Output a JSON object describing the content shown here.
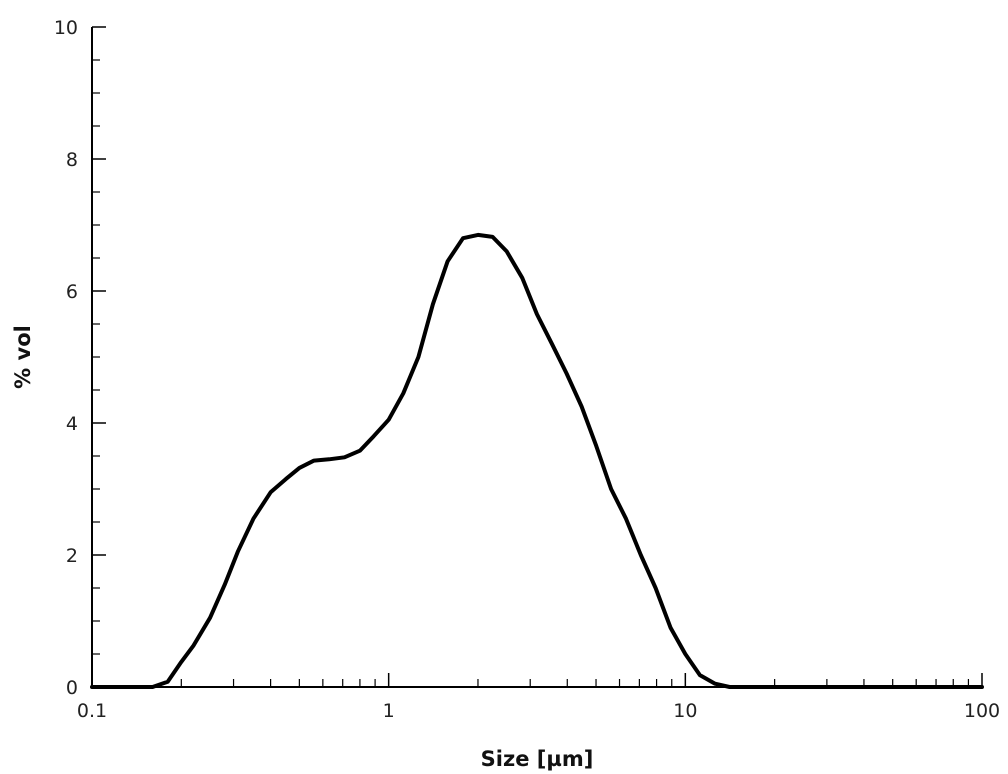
{
  "chart_data": {
    "type": "line",
    "title": "",
    "xlabel": "Size [µm]",
    "ylabel": "% vol",
    "xscale": "log",
    "xlim": [
      0.1,
      100
    ],
    "ylim": [
      0,
      10
    ],
    "grid": false,
    "x_tick_labels": [
      "0.1",
      "1",
      "10",
      "100"
    ],
    "x_tick_values": [
      0.1,
      1,
      10,
      100
    ],
    "y_tick_labels": [
      "0",
      "2",
      "4",
      "6",
      "8",
      "10"
    ],
    "y_tick_values": [
      0,
      2,
      4,
      6,
      8,
      10
    ],
    "colors": {
      "line": "#000000",
      "axis": "#000000"
    },
    "series": [
      {
        "x": [
          0.1,
          0.12,
          0.14,
          0.16,
          0.18,
          0.2,
          0.22,
          0.25,
          0.28,
          0.31,
          0.35,
          0.4,
          0.45,
          0.5,
          0.56,
          0.63,
          0.71,
          0.8,
          0.89,
          1.0,
          1.12,
          1.26,
          1.41,
          1.58,
          1.78,
          2.0,
          2.24,
          2.5,
          2.82,
          3.16,
          3.55,
          3.98,
          4.47,
          5.01,
          5.62,
          6.31,
          7.08,
          7.94,
          8.91,
          10.0,
          11.2,
          12.6,
          14.1,
          15.8,
          20,
          30,
          50,
          100
        ],
        "y": [
          0,
          0,
          0,
          0,
          0.08,
          0.38,
          0.63,
          1.05,
          1.55,
          2.05,
          2.55,
          2.95,
          3.15,
          3.32,
          3.43,
          3.45,
          3.48,
          3.58,
          3.8,
          4.05,
          4.45,
          5.0,
          5.8,
          6.45,
          6.8,
          6.85,
          6.82,
          6.6,
          6.2,
          5.65,
          5.2,
          4.75,
          4.25,
          3.65,
          3.0,
          2.55,
          2.0,
          1.5,
          0.9,
          0.5,
          0.18,
          0.05,
          0,
          0,
          0,
          0,
          0,
          0
        ]
      }
    ]
  }
}
